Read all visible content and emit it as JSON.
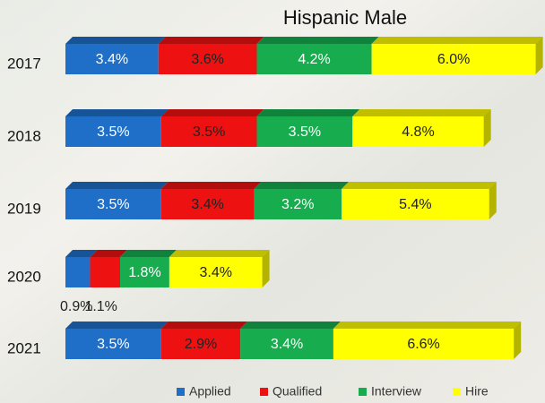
{
  "chart_data": {
    "type": "stacked-bar-3d",
    "title": "Hispanic Male",
    "categories": [
      "2017",
      "2018",
      "2019",
      "2020",
      "2021"
    ],
    "series": [
      {
        "name": "Applied",
        "color": "#1f6fc9",
        "values": [
          3.4,
          3.5,
          3.5,
          0.9,
          3.5
        ],
        "value_labels": [
          "3.4%",
          "3.5%",
          "3.5%",
          "0.9%",
          "3.5%"
        ]
      },
      {
        "name": "Qualified",
        "color": "#ee1111",
        "values": [
          3.6,
          3.5,
          3.4,
          1.1,
          2.9
        ],
        "value_labels": [
          "3.6%",
          "3.5%",
          "3.4%",
          "1.1%",
          "2.9%"
        ]
      },
      {
        "name": "Interview",
        "color": "#17ad4e",
        "values": [
          4.2,
          3.5,
          3.2,
          1.8,
          3.4
        ],
        "value_labels": [
          "4.2%",
          "3.5%",
          "3.2%",
          "1.8%",
          "3.4%"
        ]
      },
      {
        "name": "Hire",
        "color": "#ffff00",
        "values": [
          6.0,
          4.8,
          5.4,
          3.4,
          6.6
        ],
        "value_labels": [
          "6.0%",
          "4.8%",
          "5.4%",
          "3.4%",
          "6.6%"
        ]
      }
    ]
  }
}
